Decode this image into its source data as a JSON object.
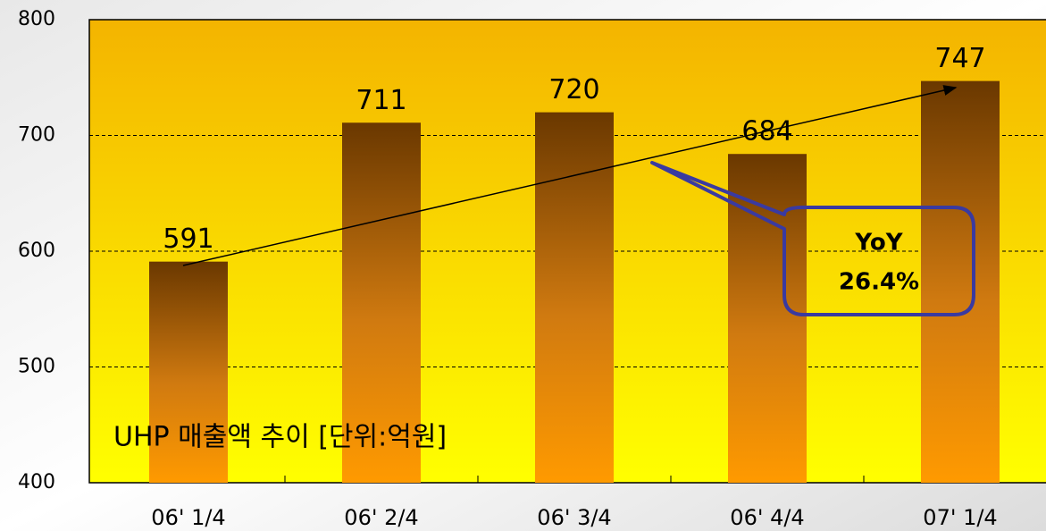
{
  "chart_data": {
    "type": "bar",
    "title": "UHP 매출액 추이 [단위:억원]",
    "categories": [
      "06' 1/4",
      "06' 2/4",
      "06' 3/4",
      "06' 4/4",
      "07' 1/4"
    ],
    "values": [
      591,
      711,
      720,
      684,
      747
    ],
    "ylim": [
      400,
      800
    ],
    "yticks": [
      400,
      500,
      600,
      700,
      800
    ],
    "grid": true,
    "annotation": [
      "YoY",
      "26.4%"
    ]
  }
}
